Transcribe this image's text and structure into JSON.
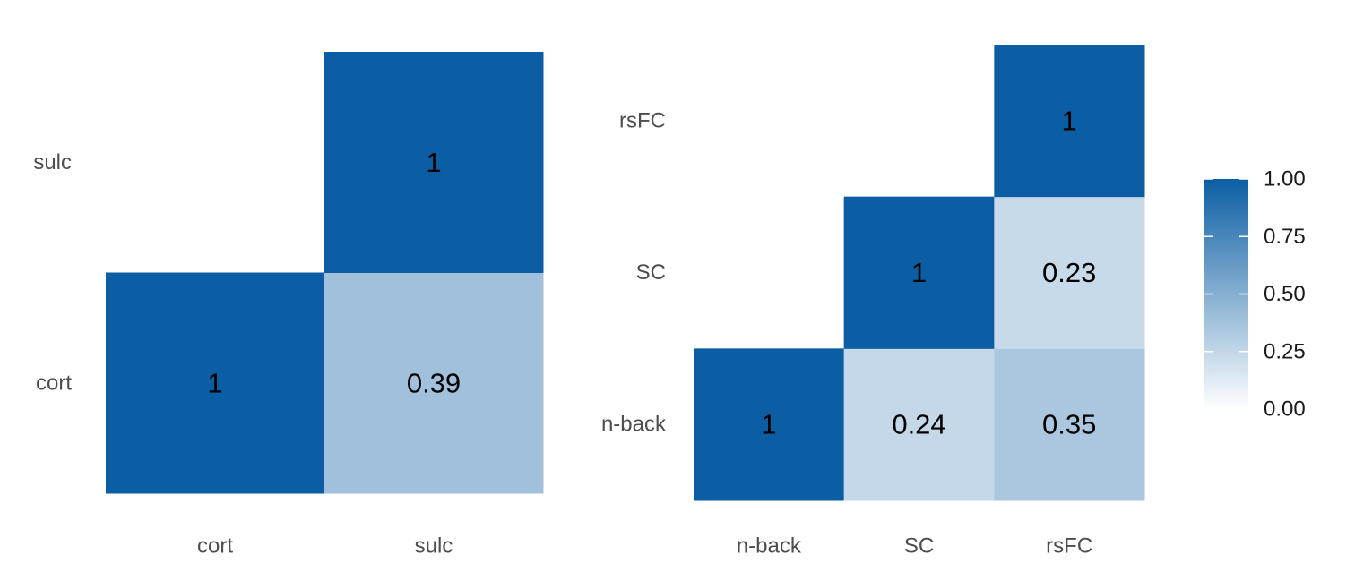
{
  "chart_data": [
    {
      "type": "heatmap",
      "triangle": "upper",
      "x_categories": [
        "cort",
        "sulc"
      ],
      "y_categories": [
        "cort",
        "sulc"
      ],
      "cells": [
        {
          "x": "cort",
          "y": "cort",
          "value": 1,
          "label": "1"
        },
        {
          "x": "sulc",
          "y": "cort",
          "value": 0.39,
          "label": "0.39"
        },
        {
          "x": "sulc",
          "y": "sulc",
          "value": 1,
          "label": "1"
        }
      ]
    },
    {
      "type": "heatmap",
      "triangle": "upper",
      "x_categories": [
        "n-back",
        "SC",
        "rsFC"
      ],
      "y_categories": [
        "n-back",
        "SC",
        "rsFC"
      ],
      "cells": [
        {
          "x": "n-back",
          "y": "n-back",
          "value": 1,
          "label": "1"
        },
        {
          "x": "SC",
          "y": "n-back",
          "value": 0.24,
          "label": "0.24"
        },
        {
          "x": "rsFC",
          "y": "n-back",
          "value": 0.35,
          "label": "0.35"
        },
        {
          "x": "SC",
          "y": "SC",
          "value": 1,
          "label": "1"
        },
        {
          "x": "rsFC",
          "y": "SC",
          "value": 0.23,
          "label": "0.23"
        },
        {
          "x": "rsFC",
          "y": "rsFC",
          "value": 1,
          "label": "1"
        }
      ]
    }
  ],
  "legend": {
    "type": "colorbar",
    "range": [
      0,
      1
    ],
    "ticks": [
      "0.00",
      "0.25",
      "0.50",
      "0.75",
      "1.00"
    ],
    "color_low": "#ffffff",
    "color_high": "#0b5ea3"
  }
}
